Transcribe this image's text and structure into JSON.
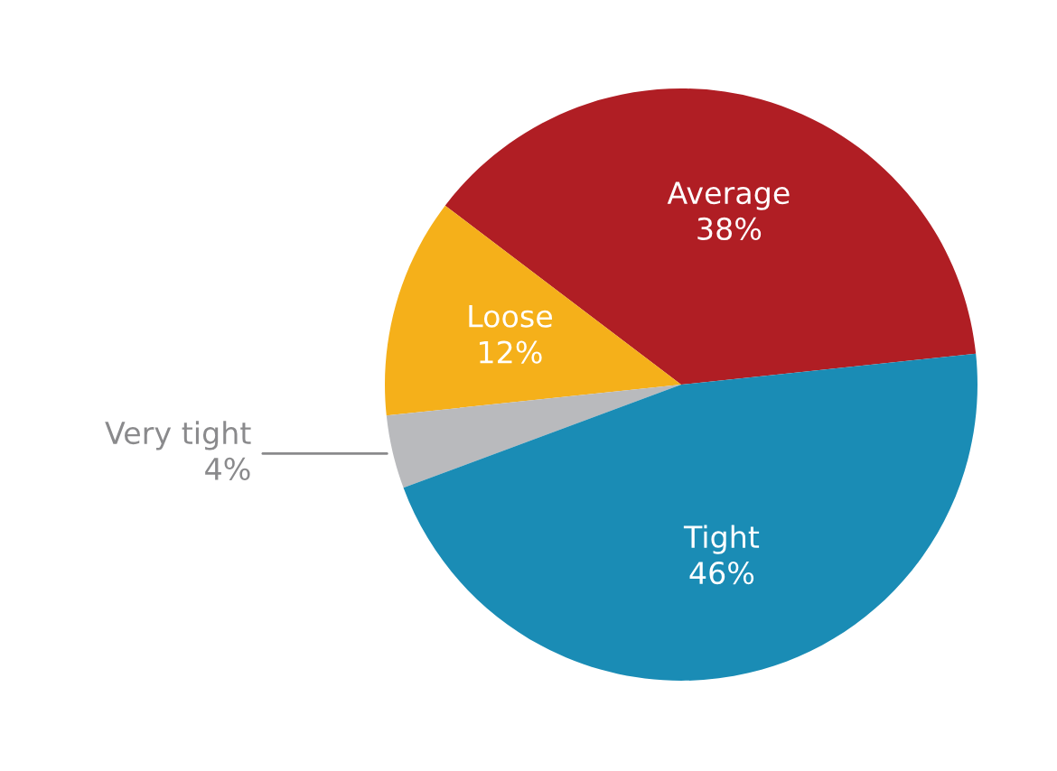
{
  "chart_data": {
    "type": "pie",
    "categories": [
      "Average",
      "Loose",
      "Very tight",
      "Tight"
    ],
    "values": [
      38,
      12,
      4,
      46
    ],
    "colors": [
      "#b01e24",
      "#f5b01a",
      "#b9babd",
      "#1a8cb5"
    ],
    "value_labels": [
      "38%",
      "12%",
      "4%",
      "46%"
    ]
  }
}
